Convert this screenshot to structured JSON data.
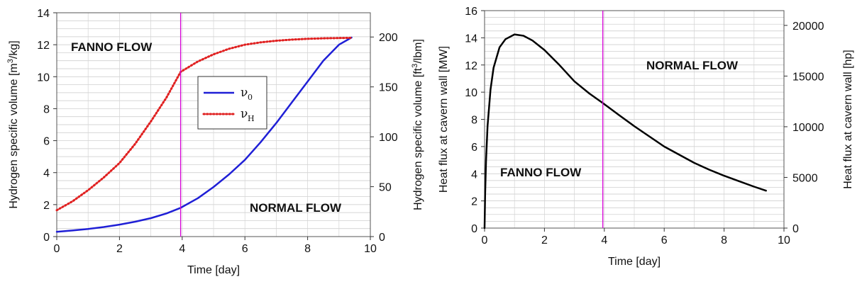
{
  "chart_data": [
    {
      "type": "line",
      "xlabel": "Time [day]",
      "ylabel": "Hydrogen specific volume [m³/kg]",
      "ylabel_parts": {
        "pre": "Hydrogen specific volume [m",
        "sup": "3",
        "post": "/kg]"
      },
      "y2label": "Hydrogen specific volume [ft³/lbm]",
      "y2label_parts": {
        "pre": "Hydrogen specific volume [ft",
        "sup": "3",
        "post": "/lbm]"
      },
      "xlim": [
        0,
        10
      ],
      "ylim": [
        0,
        14
      ],
      "y2lim": [
        0,
        224.3
      ],
      "x_ticks": [
        "0",
        "2",
        "4",
        "6",
        "8",
        "10"
      ],
      "y_ticks": [
        "0",
        "2",
        "4",
        "6",
        "8",
        "10",
        "12",
        "14"
      ],
      "y2_ticks": [
        "0",
        "50",
        "100",
        "150",
        "200"
      ],
      "y2_tick_values": [
        0,
        50,
        100,
        150,
        200
      ],
      "vline_x": 3.95,
      "annotations": [
        "FANNO FLOW",
        "NORMAL FLOW"
      ],
      "legend_placement": "center",
      "grid": true,
      "series": [
        {
          "name": "ν",
          "name_sub": "0",
          "color": "#1f1fd6",
          "style": "solid",
          "x": [
            0,
            0.5,
            1,
            1.5,
            2,
            2.5,
            3,
            3.5,
            3.95,
            4.5,
            5,
            5.5,
            6,
            6.5,
            7,
            7.5,
            8,
            8.5,
            9,
            9.4
          ],
          "y": [
            0.3,
            0.38,
            0.48,
            0.6,
            0.75,
            0.93,
            1.15,
            1.45,
            1.8,
            2.4,
            3.1,
            3.9,
            4.8,
            5.9,
            7.1,
            8.4,
            9.7,
            11.0,
            12.0,
            12.45
          ]
        },
        {
          "name": "ν",
          "name_sub": "H",
          "color": "#e02020",
          "style": "dotted",
          "x": [
            0,
            0.5,
            1,
            1.5,
            2,
            2.5,
            3,
            3.5,
            3.95,
            4.5,
            5,
            5.5,
            6,
            6.5,
            7,
            7.5,
            8,
            8.5,
            9,
            9.4
          ],
          "y": [
            1.65,
            2.2,
            2.9,
            3.7,
            4.6,
            5.8,
            7.2,
            8.7,
            10.3,
            10.95,
            11.4,
            11.75,
            12.0,
            12.15,
            12.25,
            12.32,
            12.37,
            12.4,
            12.42,
            12.43
          ]
        }
      ]
    },
    {
      "type": "line",
      "xlabel": "Time [day]",
      "ylabel": "Heat flux at cavern wall [MW]",
      "y2label": "Heat flux at cavern wall [hp]",
      "xlim": [
        0,
        10
      ],
      "ylim": [
        0,
        16
      ],
      "y2lim": [
        0,
        21456
      ],
      "x_ticks": [
        "0",
        "2",
        "4",
        "6",
        "8",
        "10"
      ],
      "y_ticks": [
        "0",
        "2",
        "4",
        "6",
        "8",
        "10",
        "12",
        "14",
        "16"
      ],
      "y2_ticks": [
        "0",
        "5000",
        "10000",
        "15000",
        "20000"
      ],
      "y2_tick_values": [
        0,
        5000,
        10000,
        15000,
        20000
      ],
      "vline_x": 3.95,
      "annotations": [
        "NORMAL FLOW",
        "FANNO FLOW"
      ],
      "grid": true,
      "series": [
        {
          "color": "#000000",
          "style": "solid",
          "x": [
            0,
            0.02,
            0.05,
            0.1,
            0.2,
            0.3,
            0.5,
            0.7,
            1.0,
            1.3,
            1.6,
            2.0,
            2.5,
            3.0,
            3.5,
            3.95,
            4.5,
            5.0,
            5.5,
            6.0,
            6.5,
            7.0,
            7.5,
            8.0,
            8.5,
            9.0,
            9.4
          ],
          "y": [
            0,
            2.5,
            5.0,
            7.5,
            10.2,
            11.8,
            13.3,
            13.9,
            14.25,
            14.15,
            13.8,
            13.1,
            12.0,
            10.8,
            9.9,
            9.2,
            8.3,
            7.5,
            6.75,
            6.0,
            5.4,
            4.8,
            4.3,
            3.85,
            3.45,
            3.05,
            2.75
          ]
        }
      ]
    }
  ]
}
